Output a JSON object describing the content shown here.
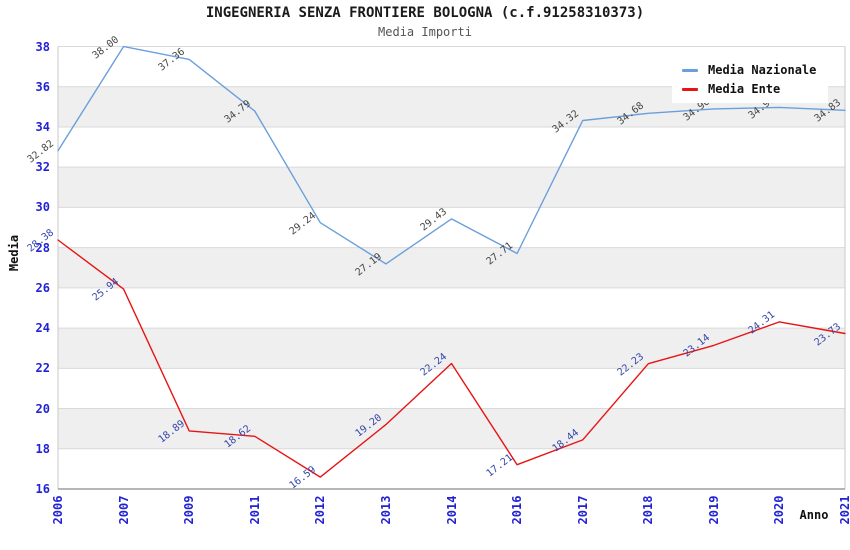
{
  "chart_data": {
    "type": "line",
    "title": "INGEGNERIA SENZA FRONTIERE BOLOGNA (c.f.91258310373)",
    "subtitle": "Media Importi",
    "xlabel": "Anno",
    "ylabel": "Media",
    "ylim": [
      16,
      38
    ],
    "ytick_step": 2,
    "grid": "horizontal-bands-alternating",
    "legend_position": "top-right-inside",
    "categories": [
      "2006",
      "2007",
      "2009",
      "2011",
      "2012",
      "2013",
      "2014",
      "2016",
      "2017",
      "2018",
      "2019",
      "2020",
      "2021"
    ],
    "series": [
      {
        "name": "Media Nazionale",
        "color": "#6b9fdb",
        "label_color": "#444444",
        "values": [
          32.82,
          38.0,
          37.36,
          34.79,
          29.24,
          27.19,
          29.43,
          27.71,
          34.32,
          34.68,
          34.9,
          34.97,
          34.83
        ]
      },
      {
        "name": "Media Ente",
        "color": "#e81414",
        "label_color": "#3344aa",
        "values": [
          28.38,
          25.94,
          18.89,
          18.62,
          16.59,
          19.2,
          22.24,
          17.21,
          18.44,
          22.23,
          23.14,
          24.31,
          23.73
        ]
      }
    ],
    "colors": {
      "band_gray": "#efefef",
      "gridline": "#d9d9d9",
      "axis_tick_text": "#2323d6",
      "bottom_spine": "#8a8a8a",
      "side_spine": "#c8c8c8"
    }
  }
}
